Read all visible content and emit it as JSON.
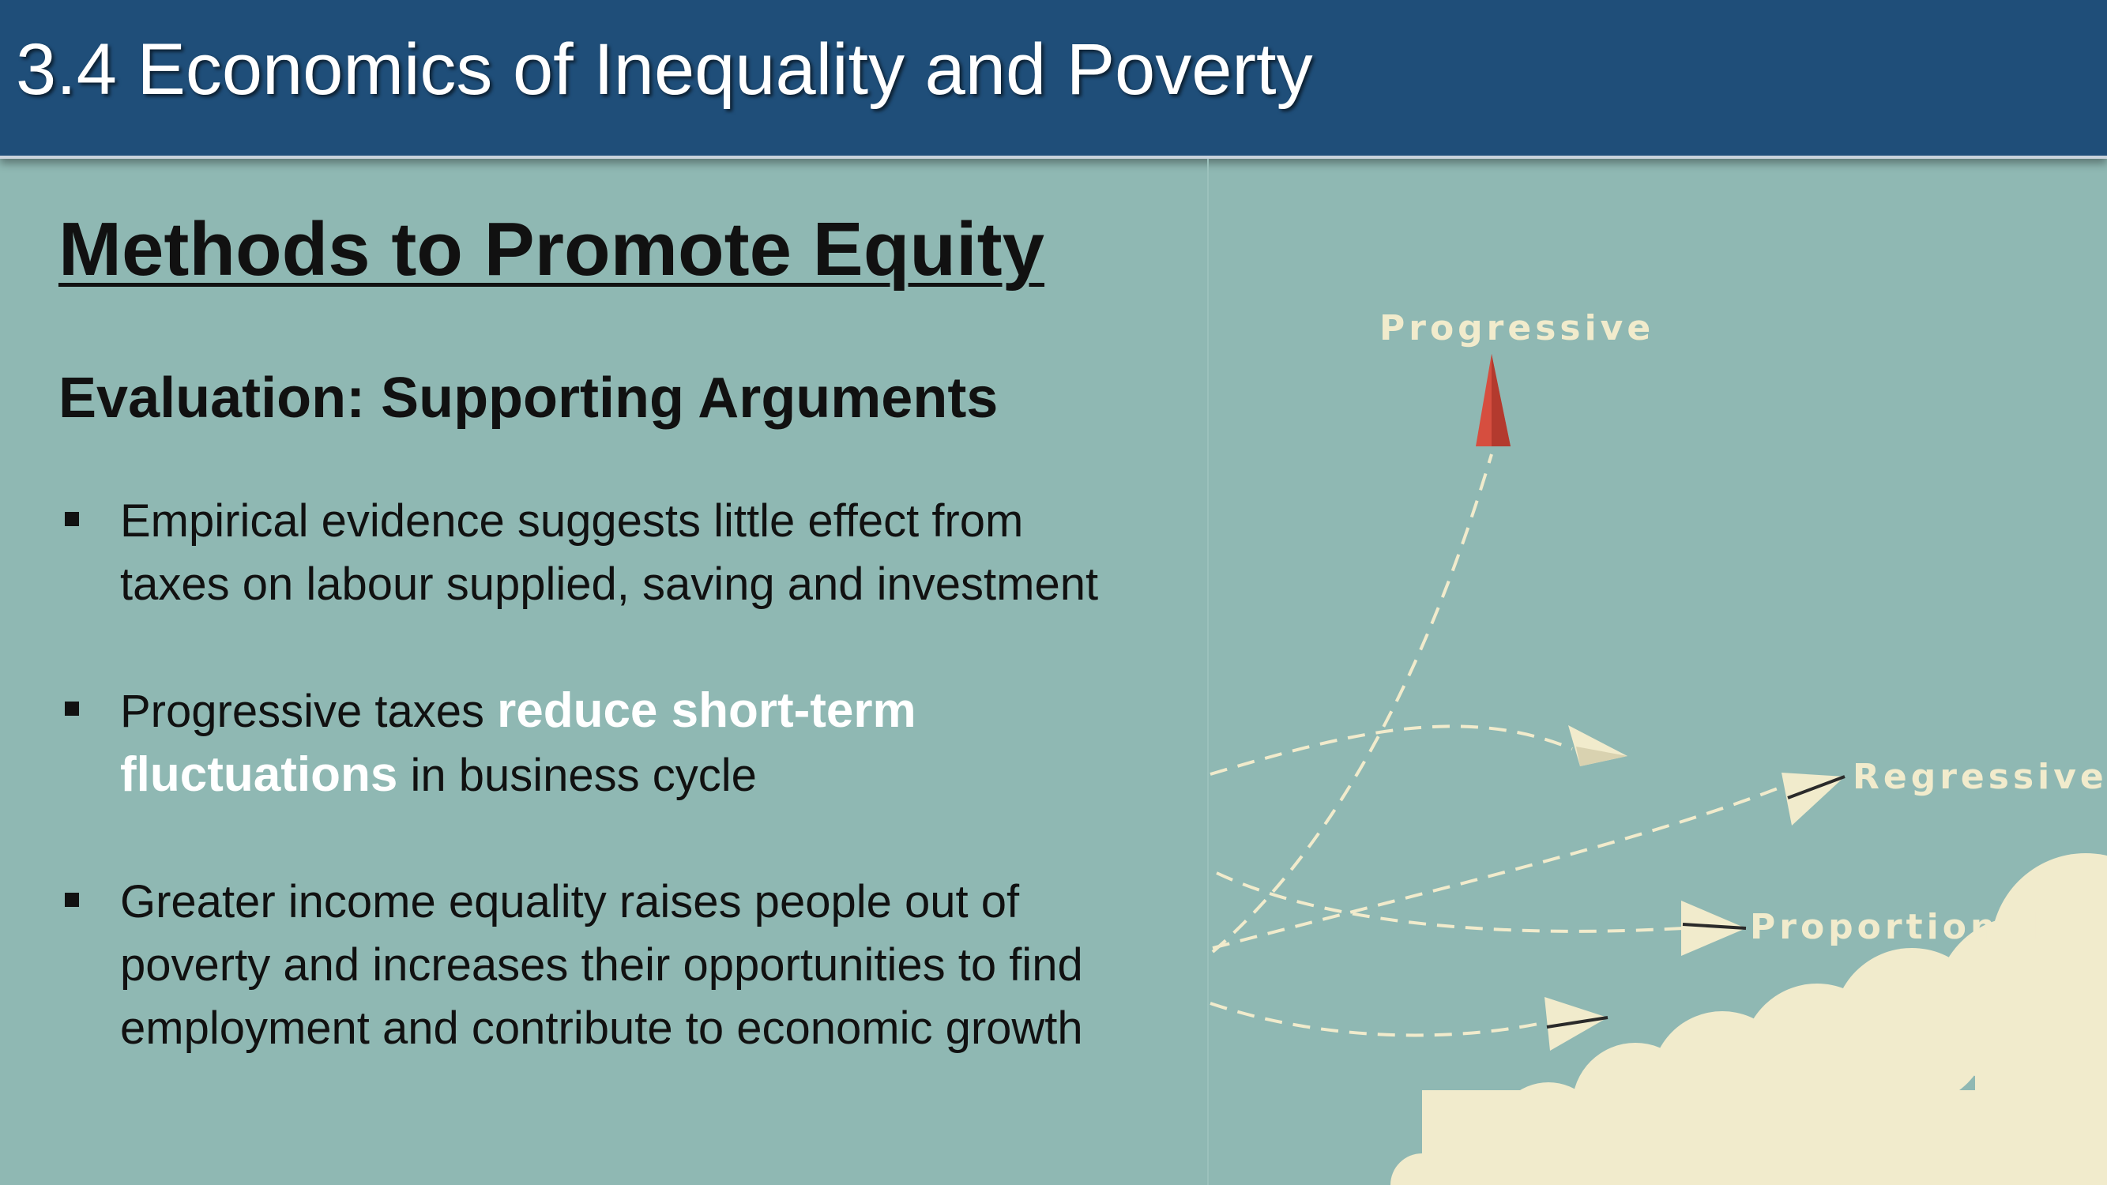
{
  "header": {
    "title": "3.4 Economics of Inequality and Poverty"
  },
  "slide": {
    "heading": "Methods to Promote Equity",
    "subheading": "Evaluation: Supporting Arguments",
    "bullets": [
      {
        "lines": [
          "Empirical evidence suggests little effect from",
          "taxes on labour supplied, saving and investment"
        ]
      },
      {
        "pre": "Progressive taxes ",
        "highlight1": "reduce short-term",
        "highlight2": "fluctuations",
        "post": " in business cycle"
      },
      {
        "lines": [
          "Greater income equality raises people out of",
          "poverty and increases their opportunities to find",
          "employment and contribute to economic growth"
        ]
      }
    ]
  },
  "diagram": {
    "labels": {
      "progressive": "Progressive",
      "regressive": "Regressive",
      "proportional": "Proportional"
    },
    "colors": {
      "red_plane": "#d64e3f",
      "cream_plane": "#f1ebcc",
      "cloud": "#f1ebcc",
      "path": "#f1ebcc"
    }
  }
}
